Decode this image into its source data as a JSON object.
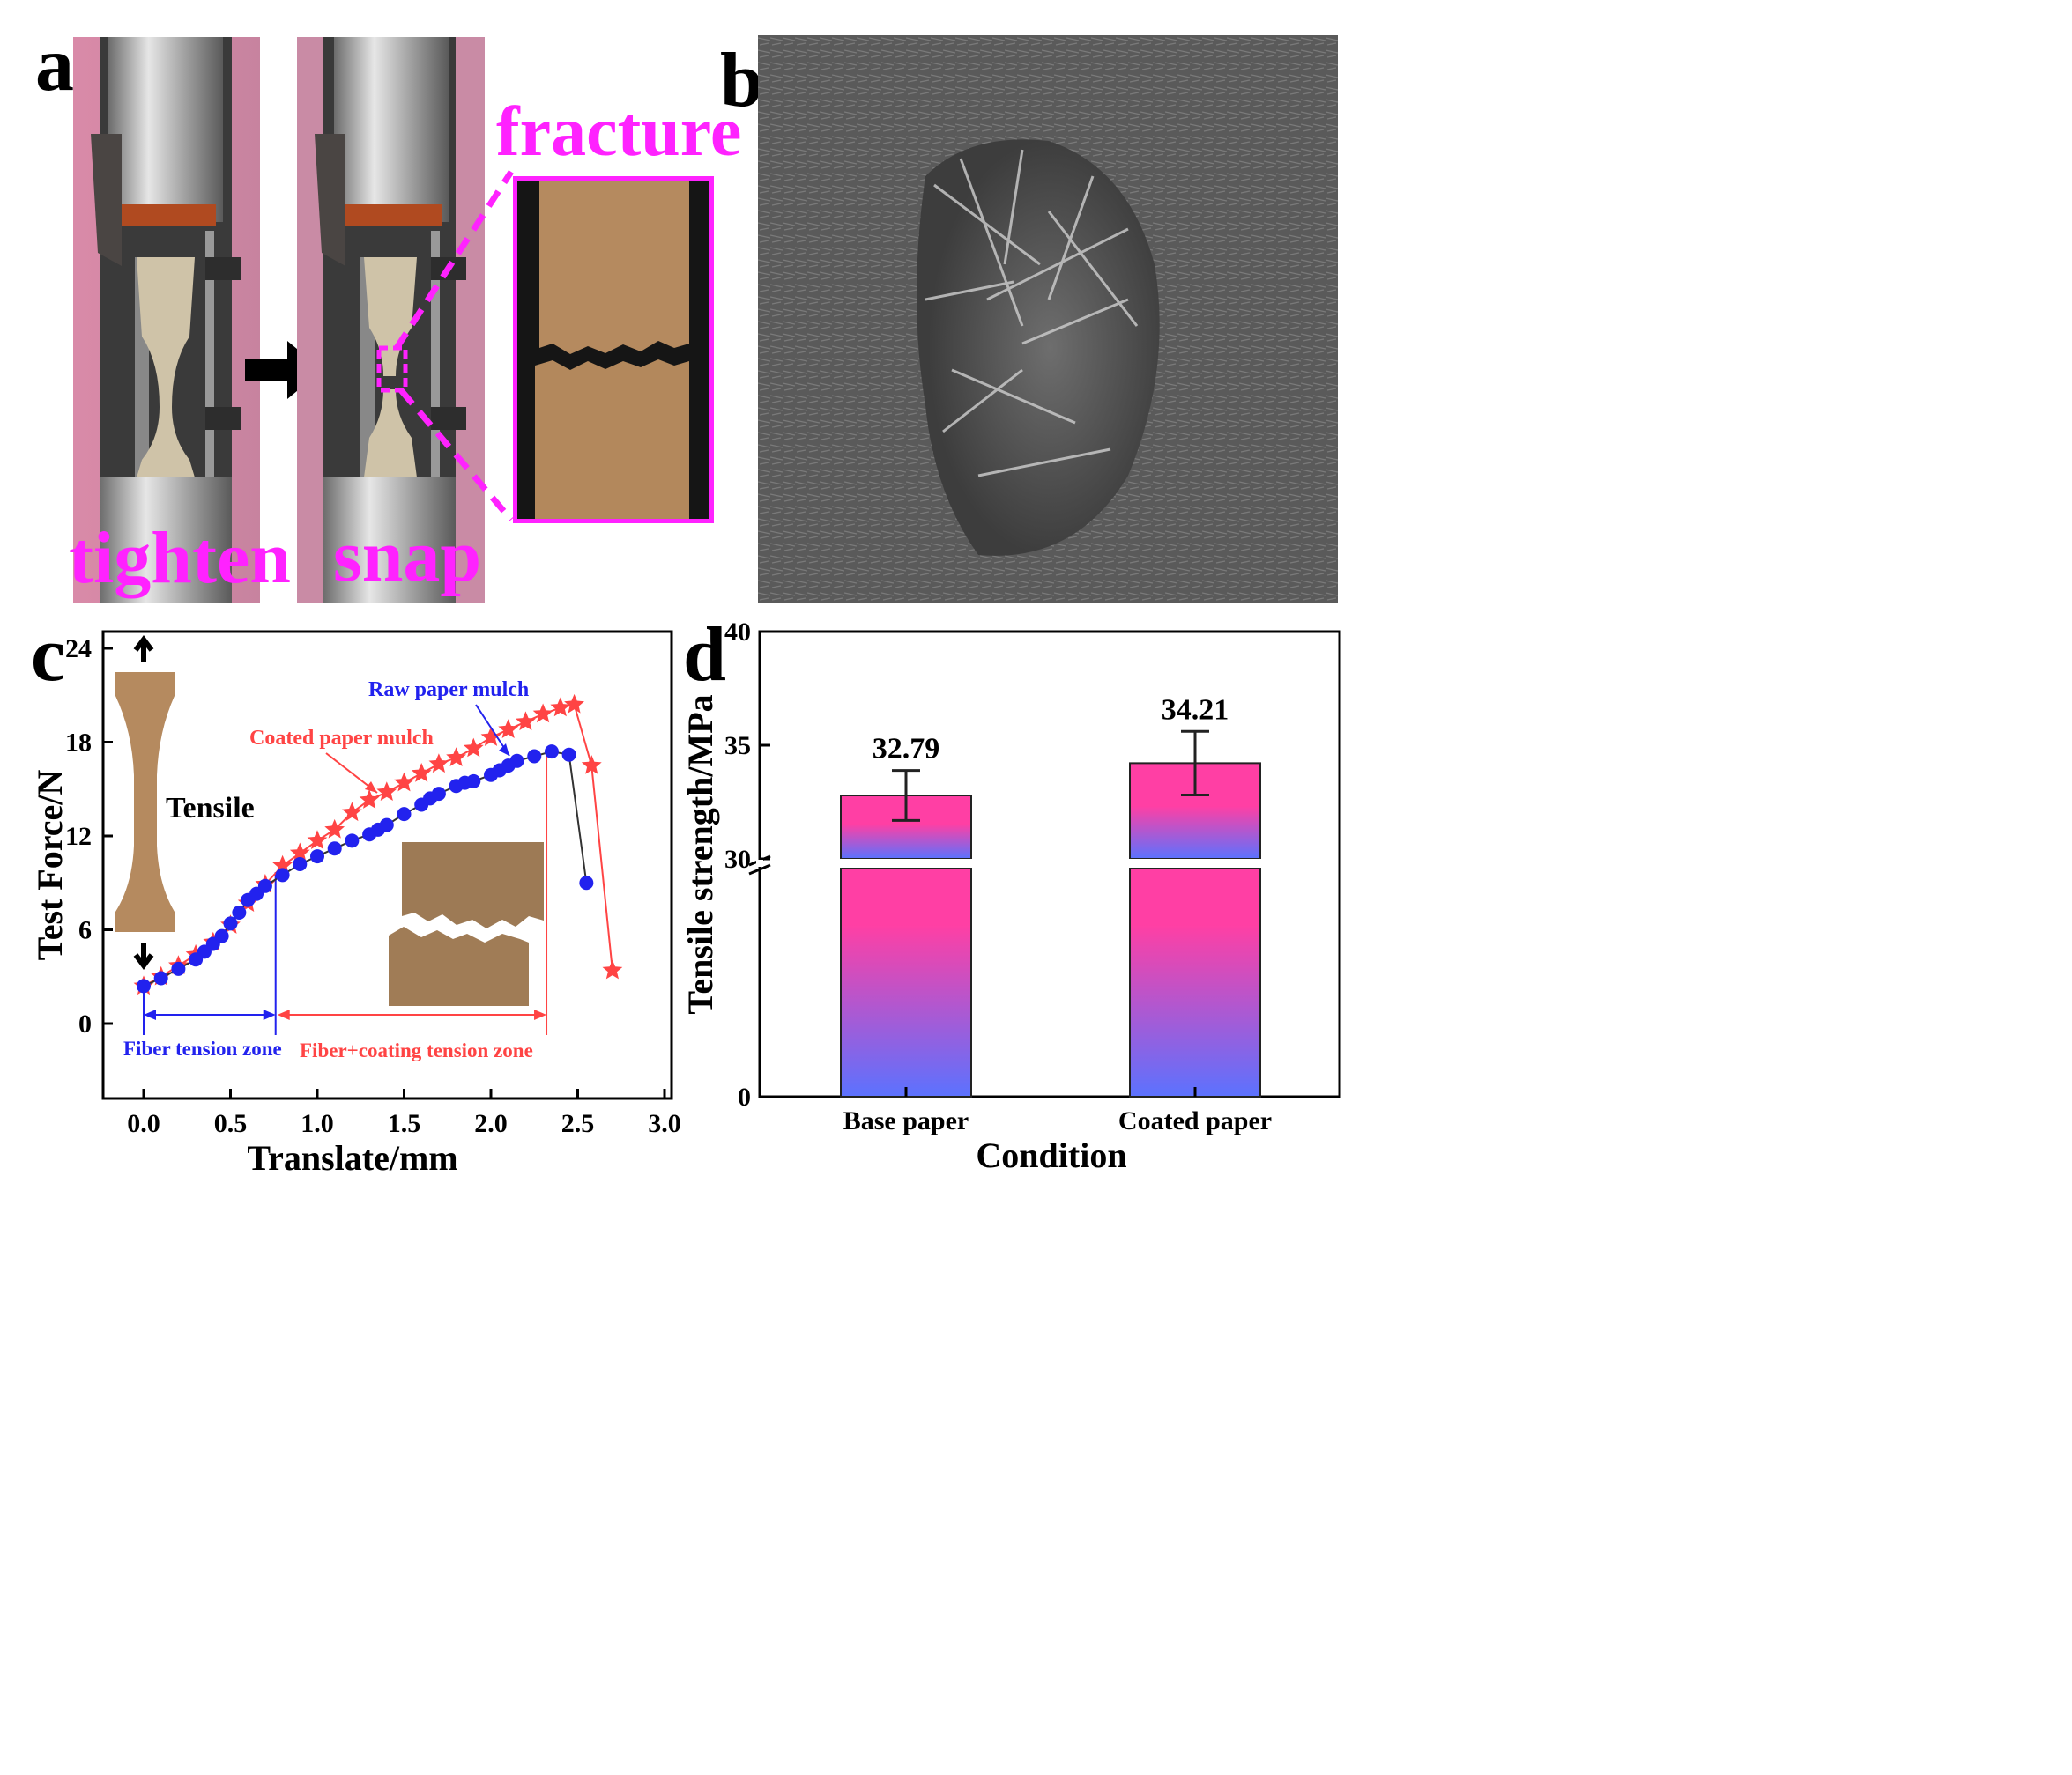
{
  "figure": {
    "panels": {
      "a": {
        "letter": "a",
        "labels": {
          "tighten": "tighten",
          "snap": "snap",
          "fracture": "fracture"
        }
      },
      "b": {
        "letter": "b"
      },
      "c": {
        "letter": "c",
        "inset_label": "Tensile"
      },
      "d": {
        "letter": "d"
      }
    },
    "colors": {
      "magenta": "#ff22ff",
      "red_series": "#ff4444",
      "blue_series": "#2222ee",
      "bar_top": "#ff3fa4",
      "bar_bottom": "#5b72ff",
      "paper_brown": "#b58a5f"
    }
  },
  "chart_data": [
    {
      "panel": "c",
      "type": "line",
      "xlabel": "Translate/mm",
      "ylabel": "Test Force/N",
      "xlim": [
        -0.25,
        3.0
      ],
      "ylim": [
        -4.8,
        24
      ],
      "xticks": [
        "0.0",
        "0.5",
        "1.0",
        "1.5",
        "2.0",
        "2.5",
        "3.0"
      ],
      "yticks": [
        "0",
        "6",
        "12",
        "18",
        "24"
      ],
      "series": [
        {
          "name": "Coated paper mulch",
          "marker": "star",
          "color": "#ff4444",
          "x": [
            0.0,
            0.1,
            0.2,
            0.3,
            0.4,
            0.5,
            0.6,
            0.7,
            0.8,
            0.9,
            1.0,
            1.1,
            1.2,
            1.3,
            1.4,
            1.5,
            1.6,
            1.7,
            1.8,
            1.9,
            2.0,
            2.1,
            2.2,
            2.3,
            2.4,
            2.48,
            2.58,
            2.7
          ],
          "y": [
            2.4,
            3.0,
            3.7,
            4.4,
            5.2,
            6.3,
            7.7,
            8.9,
            10.1,
            10.9,
            11.7,
            12.4,
            13.5,
            14.3,
            14.8,
            15.4,
            16.0,
            16.6,
            17.0,
            17.6,
            18.3,
            18.8,
            19.3,
            19.8,
            20.2,
            20.4,
            16.5,
            3.4
          ]
        },
        {
          "name": "Raw paper mulch",
          "marker": "circle",
          "color": "#2222ee",
          "x": [
            0.0,
            0.1,
            0.2,
            0.3,
            0.35,
            0.4,
            0.45,
            0.5,
            0.55,
            0.6,
            0.65,
            0.7,
            0.8,
            0.9,
            1.0,
            1.1,
            1.2,
            1.3,
            1.35,
            1.4,
            1.5,
            1.6,
            1.65,
            1.7,
            1.8,
            1.85,
            1.9,
            2.0,
            2.05,
            2.1,
            2.15,
            2.25,
            2.35,
            2.45,
            2.55
          ],
          "y": [
            2.4,
            2.9,
            3.5,
            4.1,
            4.6,
            5.1,
            5.6,
            6.4,
            7.1,
            7.9,
            8.3,
            8.8,
            9.5,
            10.2,
            10.7,
            11.2,
            11.7,
            12.1,
            12.4,
            12.7,
            13.4,
            14.0,
            14.4,
            14.7,
            15.2,
            15.4,
            15.5,
            15.9,
            16.2,
            16.5,
            16.8,
            17.1,
            17.4,
            17.2,
            9.0
          ]
        }
      ],
      "annotations": {
        "coated": "Coated paper mulch",
        "raw": "Raw paper mulch",
        "zone1": "Fiber tension zone",
        "zone2": "Fiber+coating tension zone"
      },
      "zone_boundaries": [
        0.0,
        0.76,
        2.32
      ]
    },
    {
      "panel": "d",
      "type": "bar",
      "xlabel": "Condition",
      "ylabel": "Tensile strength/MPa",
      "categories": [
        "Base paper",
        "Coated paper"
      ],
      "values": [
        32.79,
        34.21
      ],
      "value_labels": [
        "32.79",
        "34.21"
      ],
      "errors": [
        1.1,
        1.4
      ],
      "axis_break": [
        0,
        30
      ],
      "ylim": [
        0,
        40
      ],
      "yticks": [
        "0",
        "30",
        "35",
        "40"
      ]
    }
  ]
}
